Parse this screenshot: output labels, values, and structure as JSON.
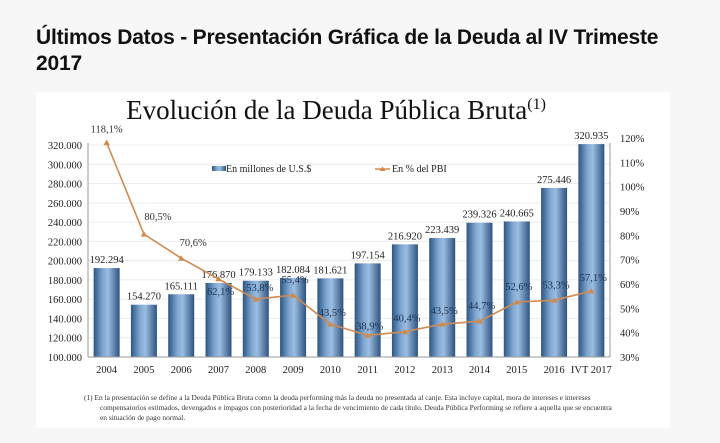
{
  "page": {
    "title": "Últimos Datos - Presentación Gráfica de la Deuda al IV Trimeste 2017"
  },
  "chart_data": {
    "type": "bar",
    "title": "Evolución de la Deuda Pública Bruta",
    "title_superscript": "(1)",
    "categories": [
      "2004",
      "2005",
      "2006",
      "2007",
      "2008",
      "2009",
      "2010",
      "2011",
      "2012",
      "2013",
      "2014",
      "2015",
      "2016",
      "IVT 2017"
    ],
    "series": [
      {
        "name": "En millones de U.S.$",
        "type": "bar",
        "axis": "left",
        "color": "#4f7fb3",
        "values": [
          192294,
          154270,
          165111,
          176870,
          179133,
          182084,
          181621,
          197154,
          216920,
          223439,
          239326,
          240665,
          275446,
          320935
        ],
        "labels": [
          "192.294",
          "154.270",
          "165.111",
          "176.870",
          "179.133",
          "182.084",
          "181.621",
          "197.154",
          "216.920",
          "223.439",
          "239.326",
          "240.665",
          "275.446",
          "320.935"
        ]
      },
      {
        "name": "En % del PBI",
        "type": "line",
        "axis": "right",
        "color": "#d08a4e",
        "values": [
          118.1,
          80.5,
          70.6,
          62.1,
          53.8,
          55.4,
          43.5,
          38.9,
          40.4,
          43.5,
          44.7,
          52.6,
          53.3,
          57.1
        ],
        "labels": [
          "118,1%",
          "80,5%",
          "70,6%",
          "62,1%",
          "53,8%",
          "55,4%",
          "43,5%",
          "38,9%",
          "40,4%",
          "43,5%",
          "44,7%",
          "52,6%",
          "53,3%",
          "57,1%"
        ]
      }
    ],
    "y_left": {
      "ylim": [
        100000,
        320000
      ],
      "ticks": [
        100000,
        120000,
        140000,
        160000,
        180000,
        200000,
        220000,
        240000,
        260000,
        280000,
        300000,
        320000
      ],
      "tick_labels": [
        "100.000",
        "120.000",
        "140.000",
        "160.000",
        "180.000",
        "200.000",
        "220.000",
        "240.000",
        "260.000",
        "280.000",
        "300.000",
        "320.000"
      ]
    },
    "y_right": {
      "ylim": [
        30,
        120
      ],
      "ticks": [
        30,
        40,
        50,
        60,
        70,
        80,
        90,
        100,
        110,
        120
      ],
      "tick_labels": [
        "30%",
        "40%",
        "50%",
        "60%",
        "70%",
        "80%",
        "90%",
        "100%",
        "110%",
        "120%"
      ]
    },
    "xlabel": "",
    "ylabel": "",
    "grid": true,
    "legend": {
      "position": "top-center",
      "entries": [
        "En millones de U.S.$",
        "En % del PBI"
      ]
    },
    "footnote": "(1) En la presentación se define a la Deuda Pública Bruta como la deuda performing más la deuda no presentada al canje. Esta incluye capital, mora de intereses e intereses compensatorios estimados, devengados e impagos con posterioridad a la fecha de vencimiento de cada título. Deuda Pública Performing se refiere a aquella que se encuentra en situación de pago normal.",
    "footnote_lines": [
      "(1)  En la presentación se define a la Deuda Pública Bruta como la deuda performing más la deuda no presentada al canje. Esta incluye capital, mora de intereses e intereses",
      "compensatorios estimados, devengados e impagos con posterioridad a la fecha de vencimiento de cada título. Deuda Pública Performing se refiere a aquella que se encuentra",
      "en situación de pago normal."
    ]
  }
}
